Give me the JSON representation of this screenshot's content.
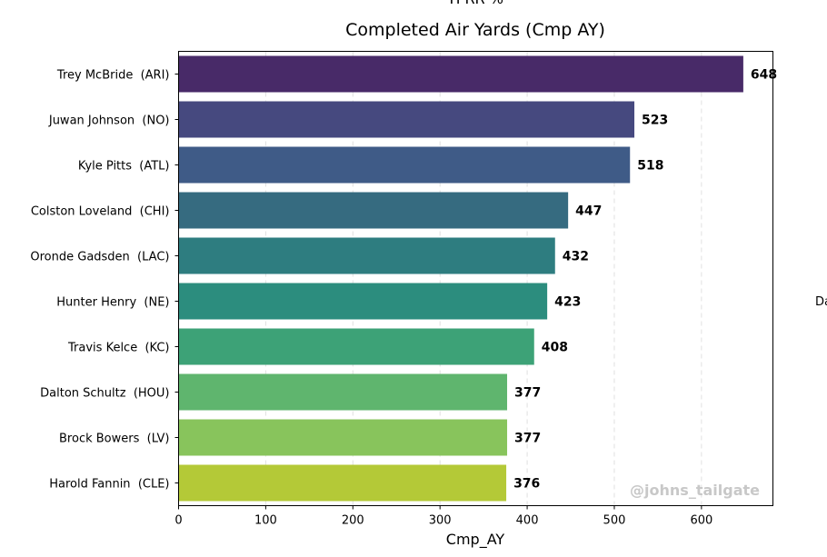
{
  "top_clipped_text": "TPRR %",
  "side_clipped_text": "Da",
  "watermark": "@johns_tailgate",
  "chart_data": {
    "type": "bar",
    "orientation": "horizontal",
    "title": "Completed Air Yards (Cmp AY)",
    "xlabel": "Cmp_AY",
    "ylabel": "",
    "xlim": [
      0,
      682
    ],
    "xticks": [
      0,
      100,
      200,
      300,
      400,
      500,
      600
    ],
    "grid": "x-dashed",
    "categories": [
      "Trey McBride  (ARI)",
      "Juwan Johnson  (NO)",
      "Kyle Pitts  (ATL)",
      "Colston Loveland  (CHI)",
      "Oronde Gadsden  (LAC)",
      "Hunter Henry  (NE)",
      "Travis Kelce  (KC)",
      "Dalton Schultz  (HOU)",
      "Brock Bowers  (LV)",
      "Harold Fannin  (CLE)"
    ],
    "values": [
      648,
      523,
      518,
      447,
      432,
      423,
      408,
      377,
      377,
      376
    ],
    "colors": [
      "#482a68",
      "#46497f",
      "#3f5b87",
      "#366b80",
      "#2e7d80",
      "#2c8d7e",
      "#3da277",
      "#5fb56e",
      "#88c45c",
      "#b4c937"
    ]
  }
}
